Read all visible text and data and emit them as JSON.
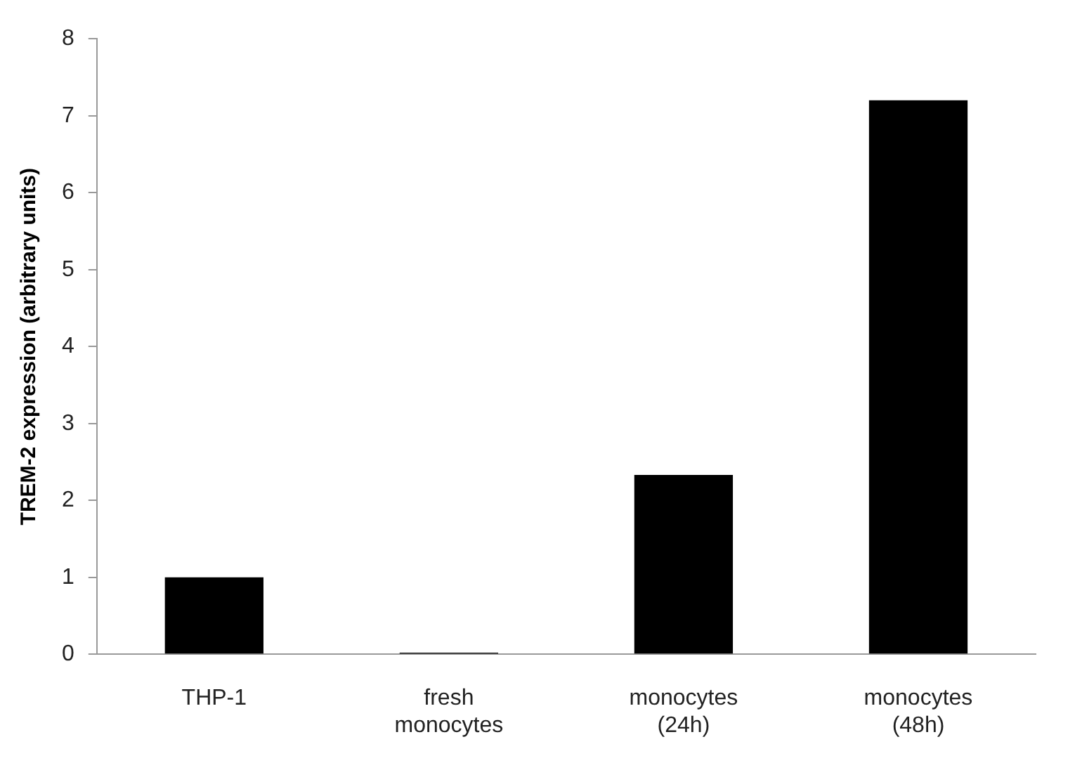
{
  "chart_data": {
    "type": "bar",
    "ylabel": "TREM-2 expression (arbitrary units)",
    "categories": [
      "THP-1",
      "fresh monocytes",
      "monocytes (24h)",
      "monocytes (48h)"
    ],
    "values": [
      1.0,
      0.02,
      2.33,
      7.2
    ],
    "color": "#000000",
    "ylim": [
      0,
      8
    ],
    "yticks": [
      0,
      1,
      2,
      3,
      4,
      5,
      6,
      7,
      8
    ],
    "grid": false,
    "legend": false
  }
}
